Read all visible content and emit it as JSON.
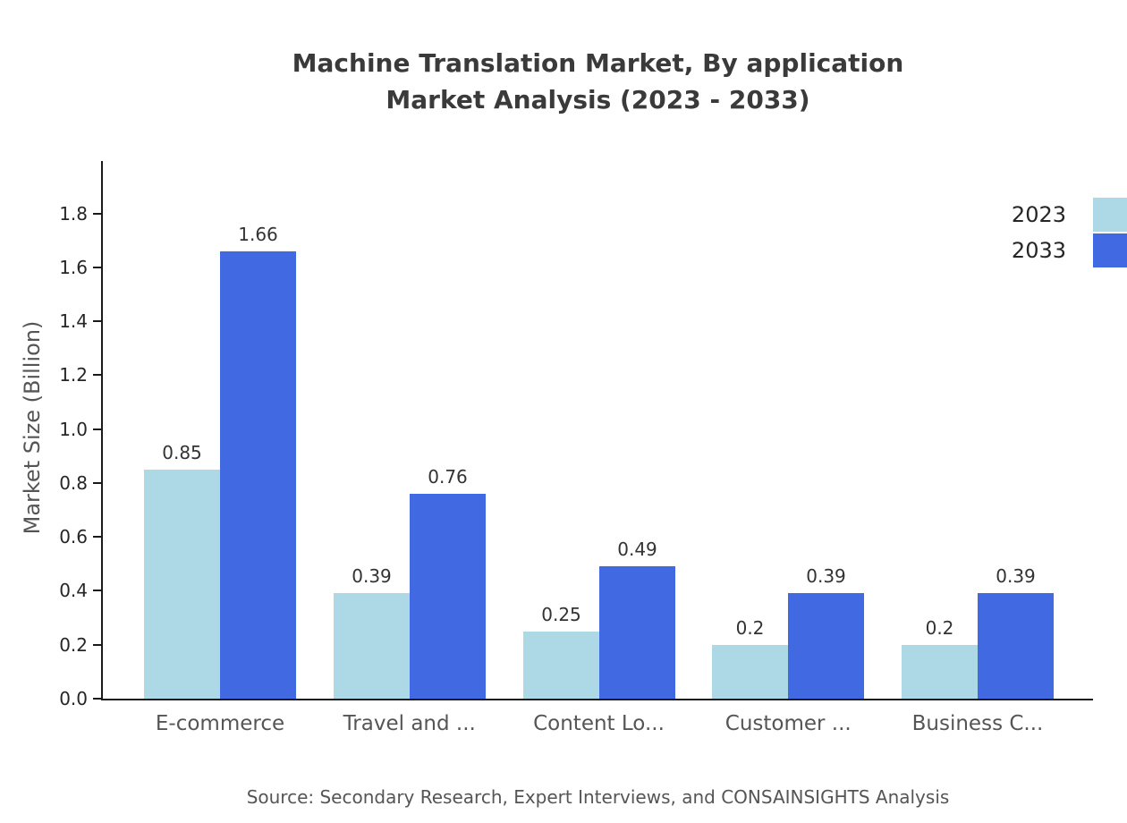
{
  "title": {
    "line1": "Machine Translation Market, By application",
    "line2": "Market Analysis (2023 - 2033)"
  },
  "y_axis_label": "Market Size (Billion)",
  "source_text": "Source: Secondary Research, Expert Interviews, and CONSAINSIGHTS Analysis",
  "legend": {
    "items": [
      {
        "label": "2023",
        "color": "#ADD8E6"
      },
      {
        "label": "2033",
        "color": "#4169E1"
      }
    ]
  },
  "colors": {
    "series_2023": "#ADD8E6",
    "series_2033": "#4169E1",
    "axis": "#1a1a1a",
    "title_text": "#3a3a3a",
    "muted_text": "#555555"
  },
  "chart_data": {
    "type": "bar",
    "categories": [
      "E-commerce",
      "Travel and ...",
      "Content Lo...",
      "Customer ...",
      "Business C..."
    ],
    "series": [
      {
        "name": "2023",
        "color": "#ADD8E6",
        "values": [
          0.85,
          0.39,
          0.25,
          0.2,
          0.2
        ]
      },
      {
        "name": "2033",
        "color": "#4169E1",
        "values": [
          1.66,
          0.76,
          0.49,
          0.39,
          0.39
        ]
      }
    ],
    "title": "Machine Translation Market, By application Market Analysis (2023 - 2033)",
    "xlabel": "",
    "ylabel": "Market Size (Billion)",
    "ylim": [
      0,
      1.9
    ],
    "yticks": [
      0.0,
      0.2,
      0.4,
      0.6,
      0.8,
      1.0,
      1.2,
      1.4,
      1.6,
      1.8
    ],
    "grid": false,
    "legend_position": "top-right"
  }
}
